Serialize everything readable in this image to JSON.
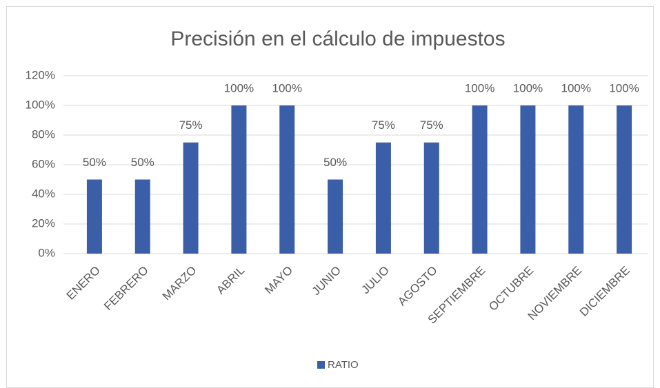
{
  "chart_data": {
    "type": "bar",
    "title": "Precisión en el cálculo de impuestos",
    "categories": [
      "ENERO",
      "FEBRERO",
      "MARZO",
      "ABRIL",
      "MAYO",
      "JUNIO",
      "JULIO",
      "AGOSTO",
      "SEPTIEMBRE",
      "OCTUBRE",
      "NOVIEMBRE",
      "DICIEMBRE"
    ],
    "series": [
      {
        "name": "RATIO",
        "color": "#3a5ea8",
        "values": [
          50,
          50,
          75,
          100,
          100,
          50,
          75,
          75,
          100,
          100,
          100,
          100
        ],
        "value_labels": [
          "50%",
          "50%",
          "75%",
          "100%",
          "100%",
          "50%",
          "75%",
          "75%",
          "100%",
          "100%",
          "100%",
          "100%"
        ]
      }
    ],
    "ylim": [
      0,
      120
    ],
    "yticks": [
      {
        "value": 0,
        "label": "0%"
      },
      {
        "value": 20,
        "label": "20%"
      },
      {
        "value": 40,
        "label": "40%"
      },
      {
        "value": 60,
        "label": "60%"
      },
      {
        "value": 80,
        "label": "80%"
      },
      {
        "value": 100,
        "label": "100%"
      },
      {
        "value": 120,
        "label": "120%"
      }
    ],
    "grid": true,
    "legend": "bottom"
  }
}
